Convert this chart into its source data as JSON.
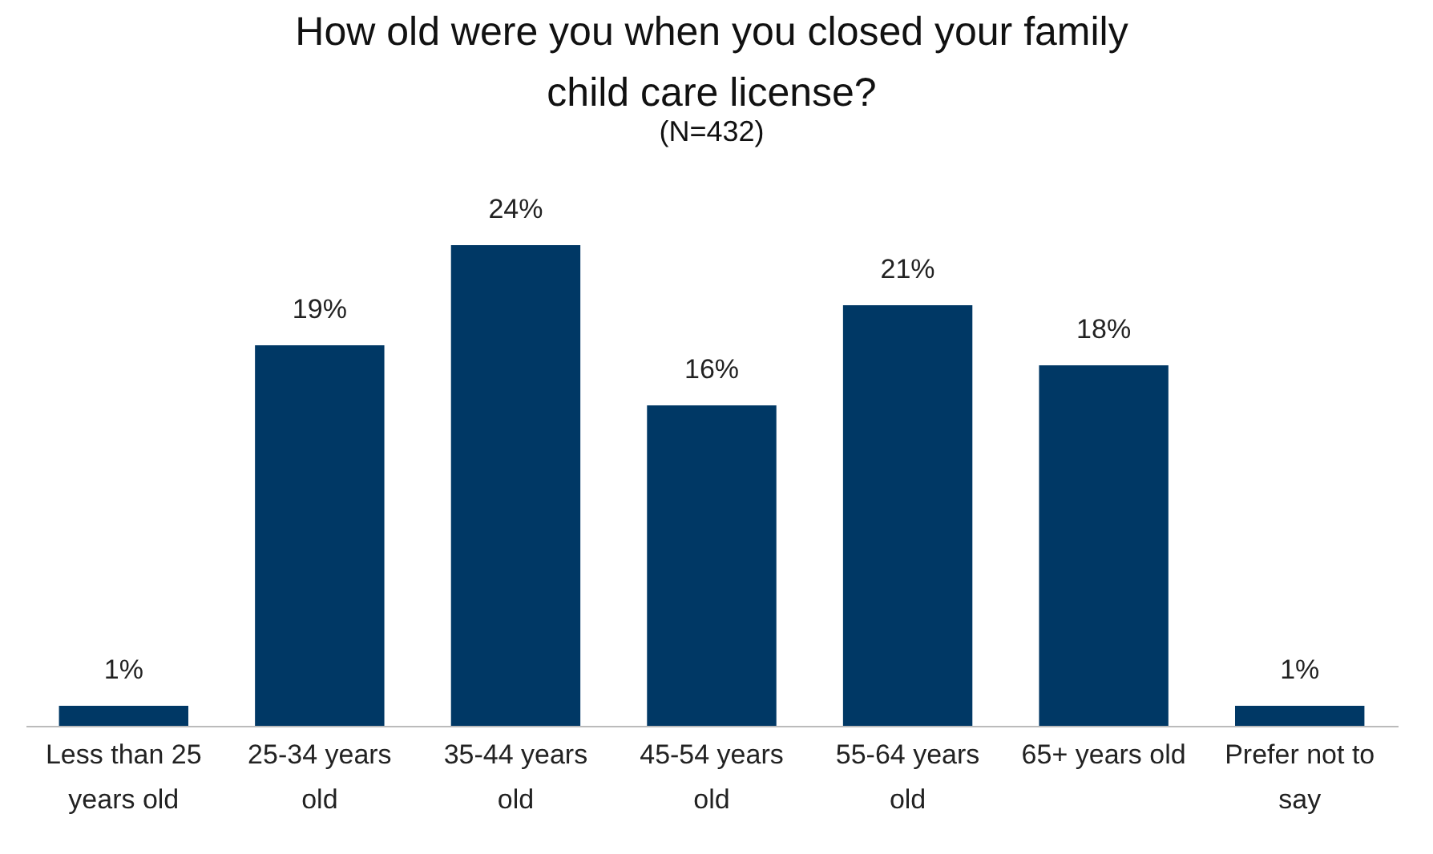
{
  "chart_data": {
    "type": "bar",
    "title": "How old were you when you closed your family child care license?",
    "subtitle": "(N=432)",
    "categories": [
      "Less than 25 years old",
      "25-34 years old",
      "35-44 years old",
      "45-54 years old",
      "55-64 years old",
      "65+ years old",
      "Prefer not to say"
    ],
    "values": [
      1,
      19,
      24,
      16,
      21,
      18,
      1
    ],
    "value_labels": [
      "1%",
      "19%",
      "24%",
      "16%",
      "21%",
      "18%",
      "1%"
    ],
    "color": "#003865",
    "grid": false
  }
}
